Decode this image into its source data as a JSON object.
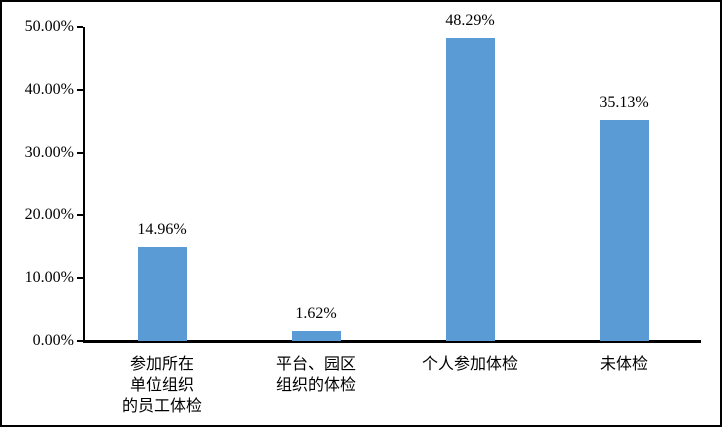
{
  "chart_data": {
    "type": "bar",
    "title": "",
    "xlabel": "",
    "ylabel": "",
    "categories": [
      "参加所在\n单位组织\n的员工体检",
      "平台、园区\n组织的体检",
      "个人参加体检",
      "未体检"
    ],
    "values": [
      14.96,
      1.62,
      48.29,
      35.13
    ],
    "data_labels": [
      "14.96%",
      "1.62%",
      "48.29%",
      "35.13%"
    ],
    "ylim": [
      0,
      50
    ],
    "ytick_labels": [
      "0.00%",
      "10.00%",
      "20.00%",
      "30.00%",
      "40.00%",
      "50.00%"
    ],
    "grid": false,
    "legend": false
  },
  "colors": {
    "bar": "#5B9BD5",
    "axis": "#000000",
    "text": "#000000",
    "background": "#FFFFFF",
    "figure_border": "#000000"
  }
}
